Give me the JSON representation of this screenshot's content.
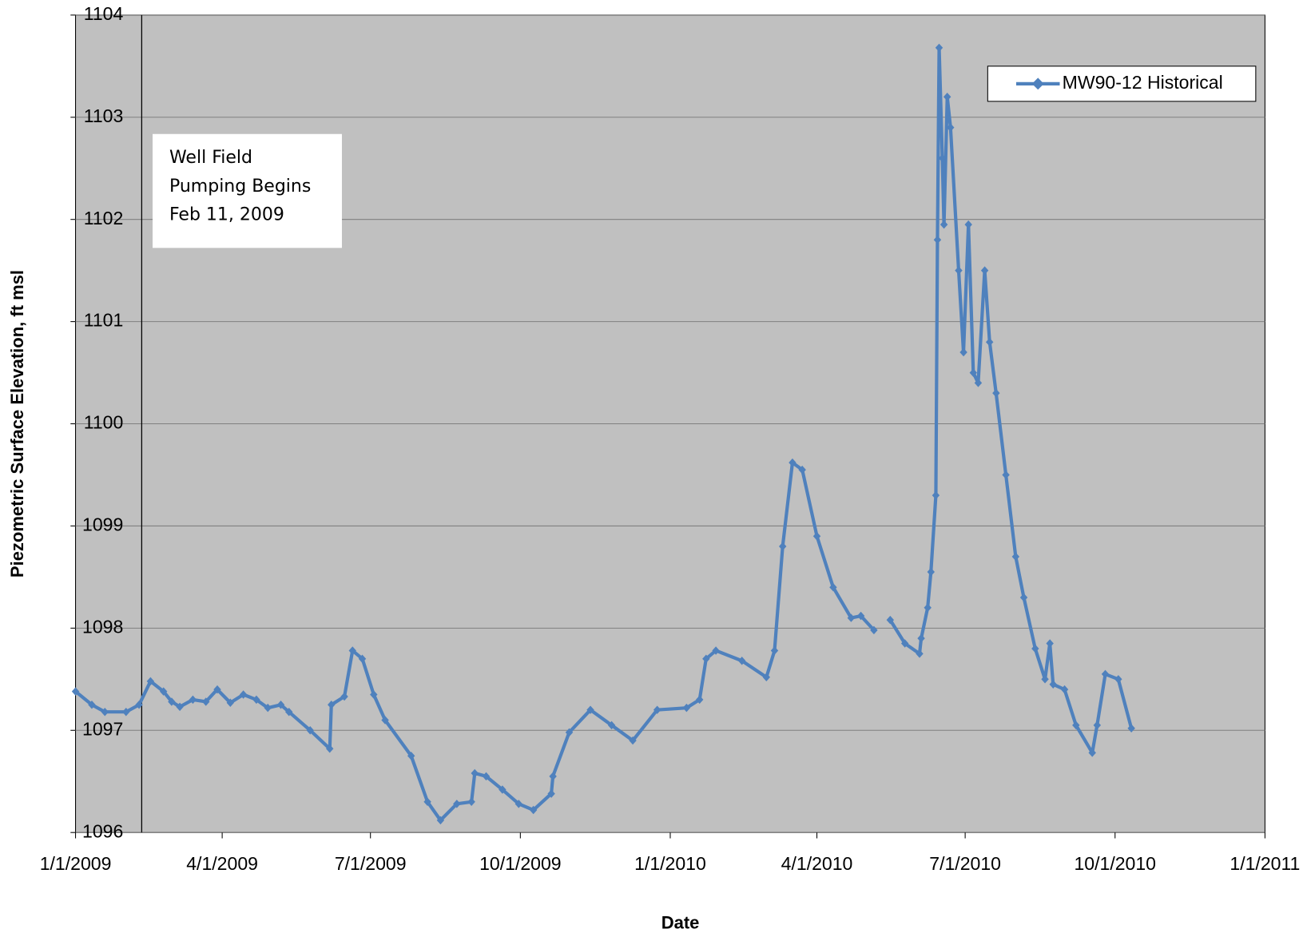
{
  "chart_data": {
    "type": "line",
    "y_label": "Piezometric Surface Elevation, ft msl",
    "x_label": "Date",
    "annotation": [
      "Well Field",
      "Pumping Begins",
      "Feb 11, 2009"
    ],
    "x": [
      "1/1/2009",
      "1/11/2009",
      "1/19/2009",
      "2/1/2009",
      "2/9/2009",
      "2/16/2009",
      "2/24/2009",
      "3/1/2009",
      "3/6/2009",
      "3/14/2009",
      "3/22/2009",
      "3/29/2009",
      "4/6/2009",
      "4/14/2009",
      "4/22/2009",
      "4/29/2009",
      "5/7/2009",
      "5/12/2009",
      "5/25/2009",
      "6/6/2009",
      "6/7/2009",
      "6/15/2009",
      "6/20/2009",
      "6/26/2009",
      "7/3/2009",
      "7/10/2009",
      "7/26/2009",
      "8/5/2009",
      "8/13/2009",
      "8/23/2009",
      "9/1/2009",
      "9/3/2009",
      "9/10/2009",
      "9/20/2009",
      "9/30/2009",
      "10/9/2009",
      "10/20/2009",
      "10/21/2009",
      "10/31/2009",
      "11/13/2009",
      "11/26/2009",
      "12/9/2009",
      "12/24/2009",
      "1/11/2010",
      "1/19/2010",
      "1/23/2010",
      "1/29/2010",
      "2/14/2010",
      "3/1/2010",
      "3/6/2010",
      "3/11/2010",
      "3/17/2010",
      "3/23/2010",
      "4/1/2010",
      "4/11/2010",
      "4/22/2010",
      "4/28/2010",
      "5/6/2010",
      "5/11/2010",
      "5/16/2010",
      "5/25/2010",
      "6/3/2010",
      "6/4/2010",
      "6/8/2010",
      "6/10/2010",
      "6/13/2010",
      "6/14/2010",
      "6/15/2010",
      "6/17/2010",
      "6/18/2010",
      "6/20/2010",
      "6/22/2010",
      "6/27/2010",
      "6/30/2010",
      "7/3/2010",
      "7/6/2010",
      "7/9/2010",
      "7/13/2010",
      "7/16/2010",
      "7/20/2010",
      "7/26/2010",
      "8/1/2010",
      "8/6/2010",
      "8/13/2010",
      "8/19/2010",
      "8/22/2010",
      "8/24/2010",
      "8/31/2010",
      "9/7/2010",
      "9/17/2010",
      "9/20/2010",
      "9/25/2010",
      "10/3/2010",
      "10/11/2010"
    ],
    "series": [
      {
        "name": "MW90-12 Historical",
        "color": "#4f81bd",
        "values": [
          1097.38,
          1097.25,
          1097.18,
          1097.18,
          1097.25,
          1097.48,
          1097.38,
          1097.28,
          1097.23,
          1097.3,
          1097.28,
          1097.4,
          1097.27,
          1097.35,
          1097.3,
          1097.22,
          1097.25,
          1097.18,
          1097.0,
          1096.82,
          1097.25,
          1097.33,
          1097.78,
          1097.7,
          1097.35,
          1097.1,
          1096.75,
          1096.3,
          1096.12,
          1096.28,
          1096.3,
          1096.58,
          1096.55,
          1096.42,
          1096.28,
          1096.22,
          1096.38,
          1096.55,
          1096.98,
          1097.2,
          1097.05,
          1096.9,
          1097.2,
          1097.22,
          1097.3,
          1097.7,
          1097.78,
          1097.68,
          1097.52,
          1097.78,
          1098.8,
          1099.62,
          1099.55,
          1098.9,
          1098.4,
          1098.1,
          1098.12,
          1097.98,
          null,
          1098.08,
          1097.85,
          1097.75,
          1097.9,
          1098.2,
          1098.55,
          1099.3,
          1101.8,
          1103.68,
          1102.6,
          1101.95,
          1103.2,
          1102.9,
          1101.5,
          1100.7,
          1101.95,
          1100.5,
          1100.4,
          1101.5,
          1100.8,
          1100.3,
          1099.5,
          1098.7,
          1098.3,
          1097.8,
          1097.5,
          1097.85,
          1097.45,
          1097.4,
          1097.05,
          1096.78,
          1097.05,
          1097.55,
          1097.5,
          1097.02
        ]
      }
    ],
    "xlim": [
      "1/1/2009",
      "1/1/2011"
    ],
    "xticks": [
      "1/1/2009",
      "4/1/2009",
      "7/1/2009",
      "10/1/2009",
      "1/1/2010",
      "4/1/2010",
      "7/1/2010",
      "10/1/2010",
      "1/1/2011"
    ],
    "ylim": [
      1096,
      1104
    ],
    "yticks": [
      1096,
      1097,
      1098,
      1099,
      1100,
      1101,
      1102,
      1103,
      1104
    ],
    "grid": true,
    "legend": "upper right",
    "background": "#c0c0c0"
  }
}
